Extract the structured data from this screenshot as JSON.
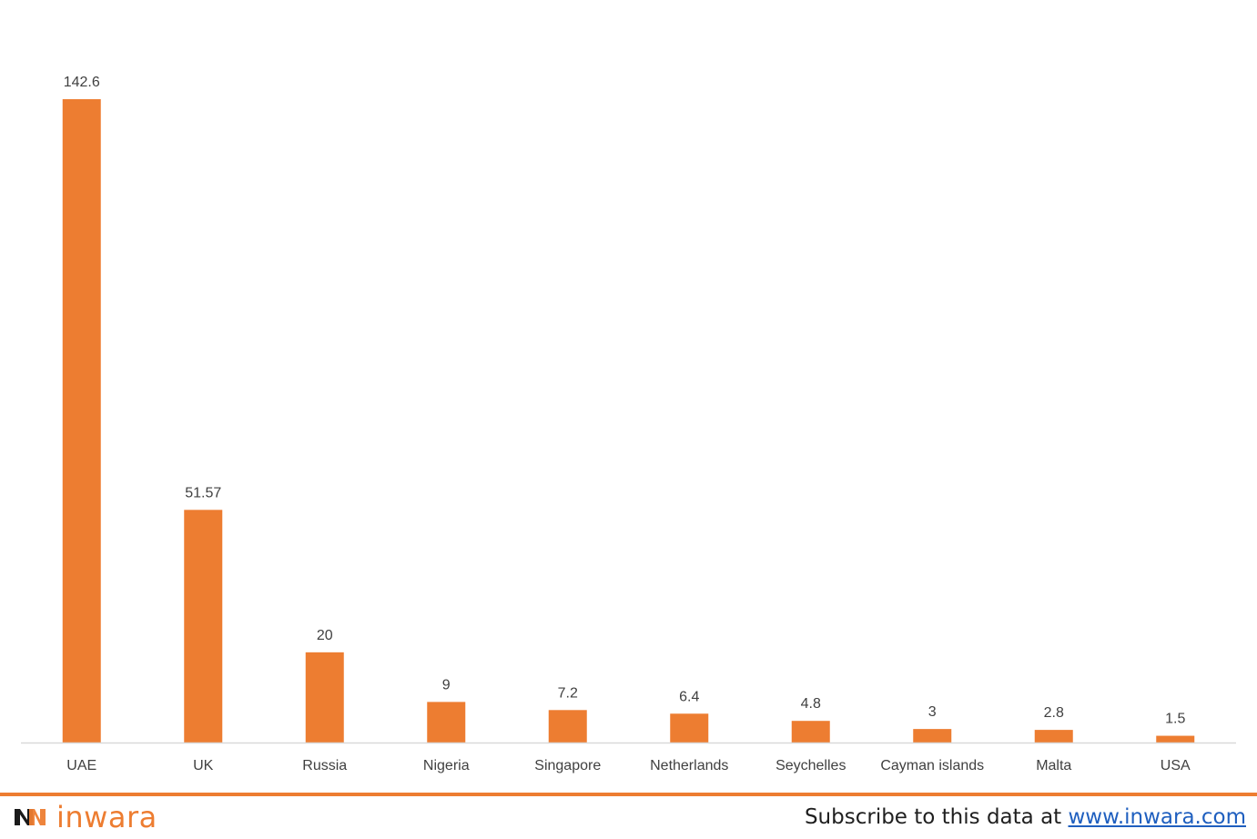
{
  "chart_data": {
    "type": "bar",
    "categories": [
      "UAE",
      "UK",
      "Russia",
      "Nigeria",
      "Singapore",
      "Netherlands",
      "Seychelles",
      "Cayman islands",
      "Malta",
      "USA"
    ],
    "values": [
      142.6,
      51.57,
      20,
      9,
      7.2,
      6.4,
      4.8,
      3,
      2.8,
      1.5
    ],
    "data_labels": [
      "142.6",
      "51.57",
      "20",
      "9",
      "7.2",
      "6.4",
      "4.8",
      "3",
      "2.8",
      "1.5"
    ],
    "title": "",
    "xlabel": "",
    "ylabel": "",
    "ylim": [
      0,
      142.6
    ],
    "grid": false,
    "legend": "none",
    "bar_color": "#ed7d31",
    "axis_color": "#d9d9d9",
    "label_color": "#404040"
  },
  "footer": {
    "logo_text": "inwara",
    "logo_icon": "inwara-logo-icon",
    "subscribe_text": "Subscribe to this data at ",
    "subscribe_link": "www.inwara.com",
    "accent_color": "#ed7d31",
    "link_color": "#1f5fbf"
  }
}
